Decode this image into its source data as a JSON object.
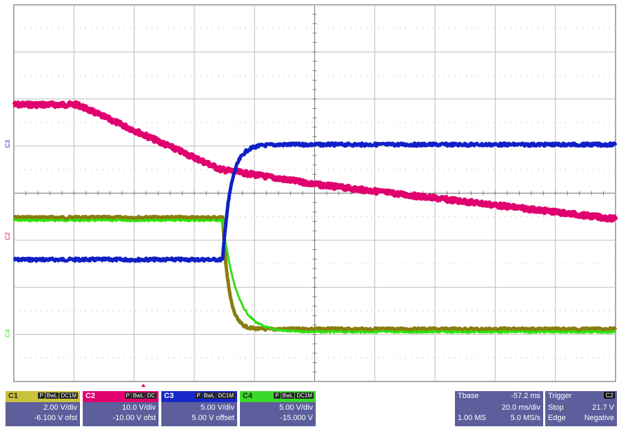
{
  "colors": {
    "c1": "#8a7d10",
    "c2": "#e0006e",
    "c3": "#1020c8",
    "c4": "#30e010",
    "grid": "#bdbdbd",
    "panel": "#5c5f9c"
  },
  "screen": {
    "trace_labels": {
      "c3": "C3",
      "c2": "C2",
      "c4": "C4"
    }
  },
  "channels": [
    {
      "id": "c1",
      "name": "C1",
      "tags": [
        "P",
        "BwL",
        "DC1M"
      ],
      "volts_per_div": "2.00 V/div",
      "offset": "-6.100 V ofst",
      "header_color": "#c9c23a"
    },
    {
      "id": "c2",
      "name": "C2",
      "tags": [
        "P",
        "BwL",
        "DC"
      ],
      "volts_per_div": "10.0 V/div",
      "offset": "-10.00 V ofst",
      "header_color": "#e0006e"
    },
    {
      "id": "c3",
      "name": "C3",
      "tags": [
        "P",
        "BwL",
        "DC1M"
      ],
      "volts_per_div": "5.00 V/div",
      "offset": "5.00 V offset",
      "header_color": "#1828c8"
    },
    {
      "id": "c4",
      "name": "C4",
      "tags": [
        "P",
        "BwL",
        "DC1M"
      ],
      "volts_per_div": "5.00 V/div",
      "offset": "-15.000 V",
      "header_color": "#3ad82a"
    }
  ],
  "timebase": {
    "label": "Tbase",
    "delay": "-57.2 ms",
    "time_per_div": "20.0 ms/div",
    "memory": "1.00 MS",
    "sample_rate": "5.0 MS/s"
  },
  "trigger": {
    "label": "Trigger",
    "channel": "C2",
    "mode": "Stop",
    "level": "21.7 V",
    "type": "Edge",
    "slope": "Negative"
  }
}
